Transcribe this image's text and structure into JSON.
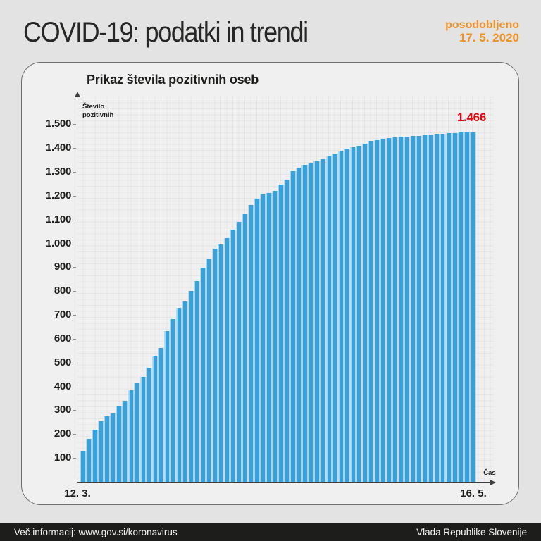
{
  "header": {
    "title": "COVID-19: podatki in trendi",
    "updated_label": "posodobljeno",
    "updated_date": "17. 5. 2020",
    "accent_color": "#ef9226"
  },
  "chart_data": {
    "type": "bar",
    "title": "Prikaz števila pozitivnih oseb",
    "ylabel": "Število pozitivnih",
    "xlabel": "Čas",
    "x_first_label": "12. 3.",
    "x_last_label": "16. 5.",
    "ylim": [
      0,
      1550
    ],
    "grid": true,
    "bar_color": "#36a2d9",
    "yticks": [
      100,
      200,
      300,
      400,
      500,
      600,
      700,
      800,
      900,
      1000,
      1100,
      1200,
      1300,
      1400,
      1500
    ],
    "ytick_labels": [
      "100",
      "200",
      "300",
      "400",
      "500",
      "600",
      "700",
      "800",
      "900",
      "1.000",
      "1.100",
      "1.200",
      "1.300",
      "1.400",
      "1.500"
    ],
    "last_value": 1466,
    "last_value_label": "1.466",
    "last_value_color": "#e30613",
    "values": [
      131,
      181,
      219,
      253,
      275,
      286,
      319,
      341,
      383,
      414,
      439,
      480,
      528,
      562,
      632,
      684,
      730,
      756,
      802,
      841,
      897,
      934,
      977,
      997,
      1021,
      1059,
      1091,
      1124,
      1160,
      1188,
      1205,
      1212,
      1220,
      1248,
      1268,
      1304,
      1317,
      1330,
      1335,
      1344,
      1353,
      1366,
      1373,
      1388,
      1396,
      1402,
      1408,
      1418,
      1429,
      1434,
      1439,
      1441,
      1445,
      1448,
      1449,
      1450,
      1451,
      1454,
      1457,
      1460,
      1461,
      1463,
      1464,
      1465,
      1466,
      1466
    ]
  },
  "footer": {
    "left": "Več informacij: www.gov.si/koronavirus",
    "right": "Vlada Republike Slovenije",
    "background": "#1d1d1b"
  }
}
